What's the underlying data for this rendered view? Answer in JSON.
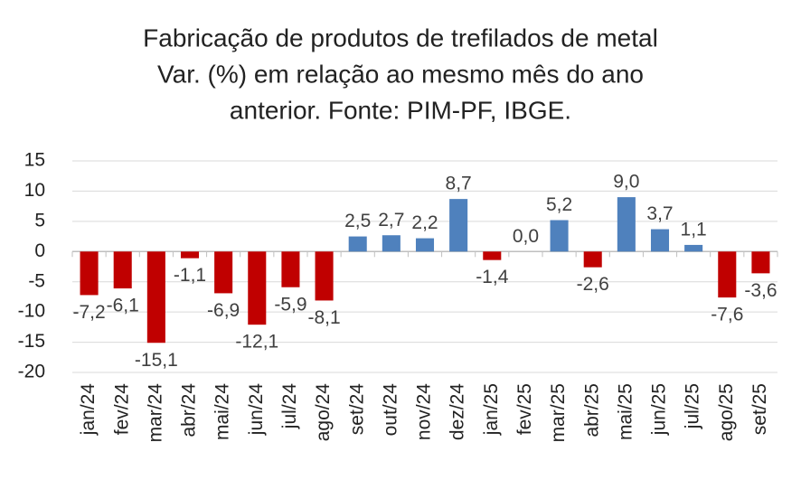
{
  "chart_data": {
    "type": "bar",
    "title": [
      "Fabricação de produtos de trefilados de metal",
      "Var. (%) em relação ao mesmo mês do ano",
      "anterior. Fonte: PIM-PF, IBGE."
    ],
    "categories": [
      "jan/24",
      "fev/24",
      "mar/24",
      "abr/24",
      "mai/24",
      "jun/24",
      "jul/24",
      "ago/24",
      "set/24",
      "out/24",
      "nov/24",
      "dez/24",
      "jan/25",
      "fev/25",
      "mar/25",
      "abr/25",
      "mai/25",
      "jun/25",
      "jul/25",
      "ago/25",
      "set/25"
    ],
    "values": [
      -7.2,
      -6.1,
      -15.1,
      -1.1,
      -6.9,
      -12.1,
      -5.9,
      -8.1,
      2.5,
      2.7,
      2.2,
      8.7,
      -1.4,
      0.0,
      5.2,
      -2.6,
      9.0,
      3.7,
      1.1,
      -7.6,
      -3.6
    ],
    "value_labels": [
      "-7,2",
      "-6,1",
      "-15,1",
      "-1,1",
      "-6,9",
      "-12,1",
      "-5,9",
      "-8,1",
      "2,5",
      "2,7",
      "2,2",
      "8,7",
      "-1,4",
      "0,0",
      "5,2",
      "-2,6",
      "9,0",
      "3,7",
      "1,1",
      "-7,6",
      "-3,6"
    ],
    "color_positive": "#4f81bd",
    "color_negative": "#c00000",
    "ylim": [
      -20,
      15
    ],
    "yticks": [
      -20,
      -15,
      -10,
      -5,
      0,
      5,
      10,
      15
    ],
    "grid": true
  }
}
